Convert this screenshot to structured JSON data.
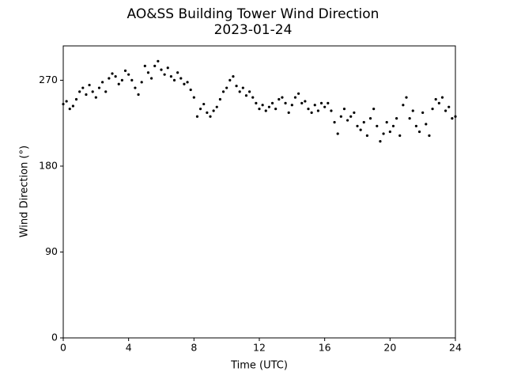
{
  "chart_data": {
    "type": "scatter",
    "title": "AO&SS Building Tower Wind Direction",
    "subtitle": "2023-01-24",
    "x_label": "Time (UTC)",
    "y_label": "Wind Direction (°)",
    "color": "#000000",
    "xlim": [
      0,
      24
    ],
    "ylim": [
      0,
      306
    ],
    "xticks": [
      0,
      4,
      8,
      12,
      16,
      20,
      24
    ],
    "yticks": [
      0,
      90,
      180,
      270
    ],
    "grid": false,
    "x": [
      0,
      0.2,
      0.4,
      0.6,
      0.8,
      1,
      1.2,
      1.4,
      1.6,
      1.8,
      2,
      2.2,
      2.4,
      2.6,
      2.8,
      3,
      3.2,
      3.4,
      3.6,
      3.8,
      4,
      4.2,
      4.4,
      4.6,
      4.8,
      5,
      5.2,
      5.4,
      5.6,
      5.8,
      6,
      6.2,
      6.4,
      6.6,
      6.8,
      7,
      7.2,
      7.4,
      7.6,
      7.8,
      8,
      8.2,
      8.4,
      8.6,
      8.8,
      9,
      9.2,
      9.4,
      9.6,
      9.8,
      10,
      10.2,
      10.4,
      10.6,
      10.8,
      11,
      11.2,
      11.4,
      11.6,
      11.8,
      12,
      12.2,
      12.4,
      12.6,
      12.8,
      13,
      13.2,
      13.4,
      13.6,
      13.8,
      14,
      14.2,
      14.4,
      14.6,
      14.8,
      15,
      15.2,
      15.4,
      15.6,
      15.8,
      16,
      16.2,
      16.4,
      16.6,
      16.8,
      17,
      17.2,
      17.4,
      17.6,
      17.8,
      18,
      18.2,
      18.4,
      18.6,
      18.8,
      19,
      19.2,
      19.4,
      19.6,
      19.8,
      20,
      20.2,
      20.4,
      20.6,
      20.8,
      21,
      21.2,
      21.4,
      21.6,
      21.8,
      22,
      22.2,
      22.4,
      22.6,
      22.8,
      23,
      23.2,
      23.4,
      23.6,
      23.8,
      24
    ],
    "values": [
      245,
      248,
      240,
      243,
      250,
      258,
      262,
      255,
      265,
      258,
      252,
      262,
      268,
      258,
      272,
      277,
      274,
      266,
      270,
      280,
      276,
      270,
      262,
      255,
      268,
      285,
      278,
      272,
      285,
      290,
      281,
      276,
      283,
      274,
      270,
      278,
      272,
      266,
      268,
      260,
      252,
      232,
      240,
      245,
      236,
      232,
      238,
      242,
      250,
      258,
      262,
      270,
      274,
      264,
      258,
      262,
      254,
      258,
      252,
      246,
      240,
      244,
      238,
      242,
      246,
      240,
      250,
      252,
      246,
      236,
      244,
      252,
      256,
      246,
      248,
      240,
      236,
      244,
      238,
      246,
      242,
      246,
      238,
      226,
      214,
      232,
      240,
      228,
      232,
      236,
      222,
      218,
      226,
      212,
      230,
      240,
      222,
      206,
      214,
      226,
      216,
      222,
      230,
      212,
      244,
      252,
      230,
      238,
      222,
      216,
      236,
      224,
      212,
      240,
      250,
      246,
      252,
      238,
      242,
      230,
      232
    ]
  }
}
